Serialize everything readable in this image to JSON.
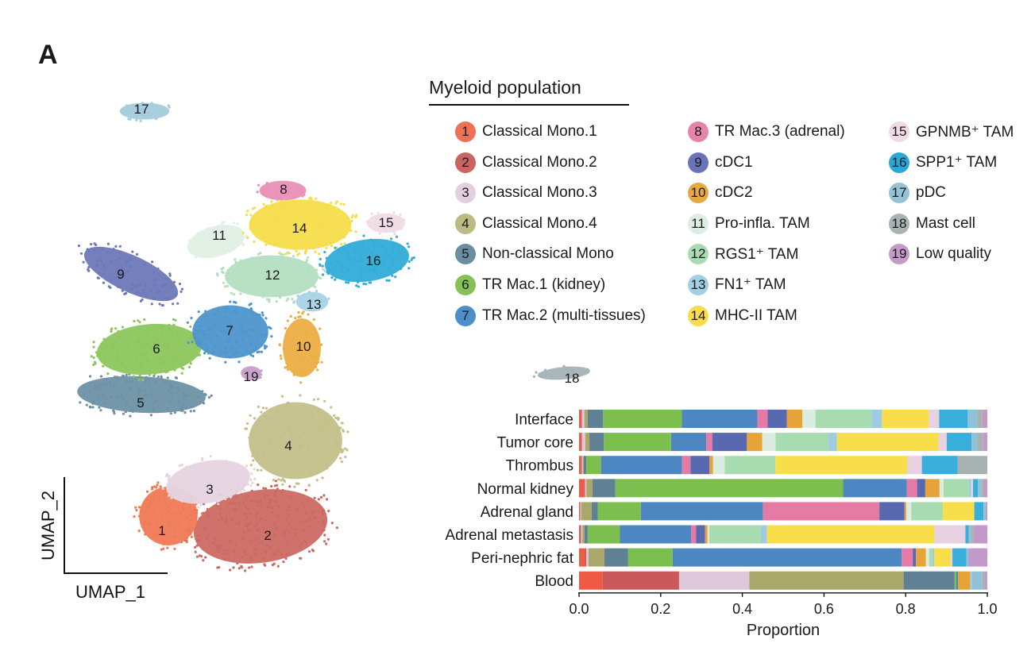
{
  "panel_label": "A",
  "legend": {
    "title": "Myeloid population",
    "items": [
      {
        "n": "1",
        "label": "Classical Mono.1",
        "color": "#ef7153"
      },
      {
        "n": "2",
        "label": "Classical Mono.2",
        "color": "#c86461"
      },
      {
        "n": "3",
        "label": "Classical Mono.3",
        "color": "#e3cfdd"
      },
      {
        "n": "4",
        "label": "Classical Mono.4",
        "color": "#bcbb84"
      },
      {
        "n": "5",
        "label": "Non-classical Mono",
        "color": "#6a8fa3"
      },
      {
        "n": "6",
        "label": "TR Mac.1 (kidney)",
        "color": "#86c157"
      },
      {
        "n": "7",
        "label": "TR Mac.2 (multi-tissues)",
        "color": "#4d8fca"
      },
      {
        "n": "8",
        "label": "TR Mac.3 (adrenal)",
        "color": "#e784ac"
      },
      {
        "n": "9",
        "label": "cDC1",
        "color": "#6874b5"
      },
      {
        "n": "10",
        "label": "cDC2",
        "color": "#e7a841"
      },
      {
        "n": "11",
        "label": "Pro-infla. TAM",
        "color": "#ddeee0"
      },
      {
        "n": "12",
        "label": "RGS1⁺ TAM",
        "color": "#a9dbb3"
      },
      {
        "n": "13",
        "label": "FN1⁺ TAM",
        "color": "#a3cfe4"
      },
      {
        "n": "14",
        "label": "MHC-II TAM",
        "color": "#f8dc49"
      },
      {
        "n": "15",
        "label": "GPNMB⁺ TAM",
        "color": "#f0dbe5"
      },
      {
        "n": "16",
        "label": "SPP1⁺ TAM",
        "color": "#2aa7d6"
      },
      {
        "n": "17",
        "label": "pDC",
        "color": "#95c3d6"
      },
      {
        "n": "18",
        "label": "Mast cell",
        "color": "#a8b4b4"
      },
      {
        "n": "19",
        "label": "Low quality",
        "color": "#c49bc8"
      }
    ]
  },
  "umap": {
    "xlabel": "UMAP_1",
    "ylabel": "UMAP_2",
    "clusters": [
      {
        "n": "1",
        "color": "#f07a55"
      },
      {
        "n": "2",
        "color": "#cb6a63"
      },
      {
        "n": "3",
        "color": "#e6d4df"
      },
      {
        "n": "4",
        "color": "#c3c08a"
      },
      {
        "n": "5",
        "color": "#6d91a5"
      },
      {
        "n": "6",
        "color": "#8cc65c"
      },
      {
        "n": "7",
        "color": "#4d95cd"
      },
      {
        "n": "8",
        "color": "#ea8fb6"
      },
      {
        "n": "9",
        "color": "#6d78b8"
      },
      {
        "n": "10",
        "color": "#ecae45"
      },
      {
        "n": "11",
        "color": "#e2efe4"
      },
      {
        "n": "12",
        "color": "#b4dfc0"
      },
      {
        "n": "13",
        "color": "#a8d3e6"
      },
      {
        "n": "14",
        "color": "#f7dd4b"
      },
      {
        "n": "15",
        "color": "#efdbe4"
      },
      {
        "n": "16",
        "color": "#32acd8"
      },
      {
        "n": "17",
        "color": "#a4cbdc"
      },
      {
        "n": "18",
        "color": "#a5b3b6"
      },
      {
        "n": "19",
        "color": "#c79fca"
      }
    ]
  },
  "chart_data": {
    "type": "bar",
    "orientation": "horizontal",
    "stacked": true,
    "categories": [
      "Interface",
      "Tumor core",
      "Thrombus",
      "Normal kidney",
      "Adrenal gland",
      "Adrenal metastasis",
      "Peri-nephric fat",
      "Blood"
    ],
    "xlabel": "Proportion",
    "xlim": [
      0,
      1.0
    ],
    "xticks": [
      "0.0",
      "0.2",
      "0.4",
      "0.6",
      "0.8",
      "1.0"
    ],
    "series": [
      {
        "name": "1",
        "color": "#ef5a45",
        "values": [
          0.005,
          0.005,
          0.005,
          0.012,
          0.002,
          0.003,
          0.015,
          0.058
        ]
      },
      {
        "name": "2",
        "color": "#c9595a",
        "values": [
          0.002,
          0.002,
          0.002,
          0.003,
          0.001,
          0.002,
          0.003,
          0.187
        ]
      },
      {
        "name": "3",
        "color": "#dfc7da",
        "values": [
          0.006,
          0.008,
          0.002,
          0.003,
          0.002,
          0.003,
          0.006,
          0.172
        ]
      },
      {
        "name": "4",
        "color": "#a9a86a",
        "values": [
          0.008,
          0.01,
          0.002,
          0.015,
          0.025,
          0.005,
          0.04,
          0.378
        ]
      },
      {
        "name": "5",
        "color": "#5f8193",
        "values": [
          0.038,
          0.035,
          0.006,
          0.056,
          0.015,
          0.008,
          0.06,
          0.125
        ]
      },
      {
        "name": "6",
        "color": "#7cbf4e",
        "values": [
          0.193,
          0.162,
          0.035,
          0.558,
          0.102,
          0.078,
          0.112,
          0.004
        ]
      },
      {
        "name": "7",
        "color": "#4c87c2",
        "values": [
          0.185,
          0.085,
          0.192,
          0.156,
          0.291,
          0.172,
          0.578,
          0.004
        ]
      },
      {
        "name": "8",
        "color": "#e57aa5",
        "values": [
          0.025,
          0.015,
          0.02,
          0.025,
          0.277,
          0.012,
          0.028,
          0.0
        ]
      },
      {
        "name": "9",
        "color": "#5868b1",
        "values": [
          0.047,
          0.083,
          0.045,
          0.02,
          0.06,
          0.022,
          0.008,
          0.0
        ]
      },
      {
        "name": "10",
        "color": "#e5a338",
        "values": [
          0.038,
          0.037,
          0.008,
          0.035,
          0.004,
          0.006,
          0.025,
          0.03
        ]
      },
      {
        "name": "11",
        "color": "#dcece0",
        "values": [
          0.032,
          0.032,
          0.028,
          0.01,
          0.012,
          0.004,
          0.008,
          0.0
        ]
      },
      {
        "name": "12",
        "color": "#a9dbb1",
        "values": [
          0.138,
          0.128,
          0.12,
          0.062,
          0.075,
          0.125,
          0.008,
          0.0
        ]
      },
      {
        "name": "13",
        "color": "#9fcbe2",
        "values": [
          0.025,
          0.02,
          0.0,
          0.005,
          0.0,
          0.015,
          0.005,
          0.005
        ]
      },
      {
        "name": "14",
        "color": "#f8de4a",
        "values": [
          0.115,
          0.245,
          0.312,
          0.0,
          0.075,
          0.405,
          0.042,
          0.0
        ]
      },
      {
        "name": "15",
        "color": "#e8d2e2",
        "values": [
          0.025,
          0.02,
          0.035,
          0.005,
          0.0,
          0.075,
          0.004,
          0.0
        ]
      },
      {
        "name": "16",
        "color": "#3aaedb",
        "values": [
          0.07,
          0.06,
          0.085,
          0.012,
          0.022,
          0.008,
          0.035,
          0.0
        ]
      },
      {
        "name": "17",
        "color": "#8fc1d7",
        "values": [
          0.023,
          0.014,
          0.0,
          0.008,
          0.005,
          0.005,
          0.005,
          0.025
        ]
      },
      {
        "name": "18",
        "color": "#a7b1b1",
        "values": [
          0.013,
          0.013,
          0.07,
          0.005,
          0.0,
          0.007,
          0.0,
          0.006
        ]
      },
      {
        "name": "19",
        "color": "#c29ac7",
        "values": [
          0.012,
          0.011,
          0.0,
          0.01,
          0.004,
          0.033,
          0.048,
          0.006
        ]
      }
    ]
  }
}
